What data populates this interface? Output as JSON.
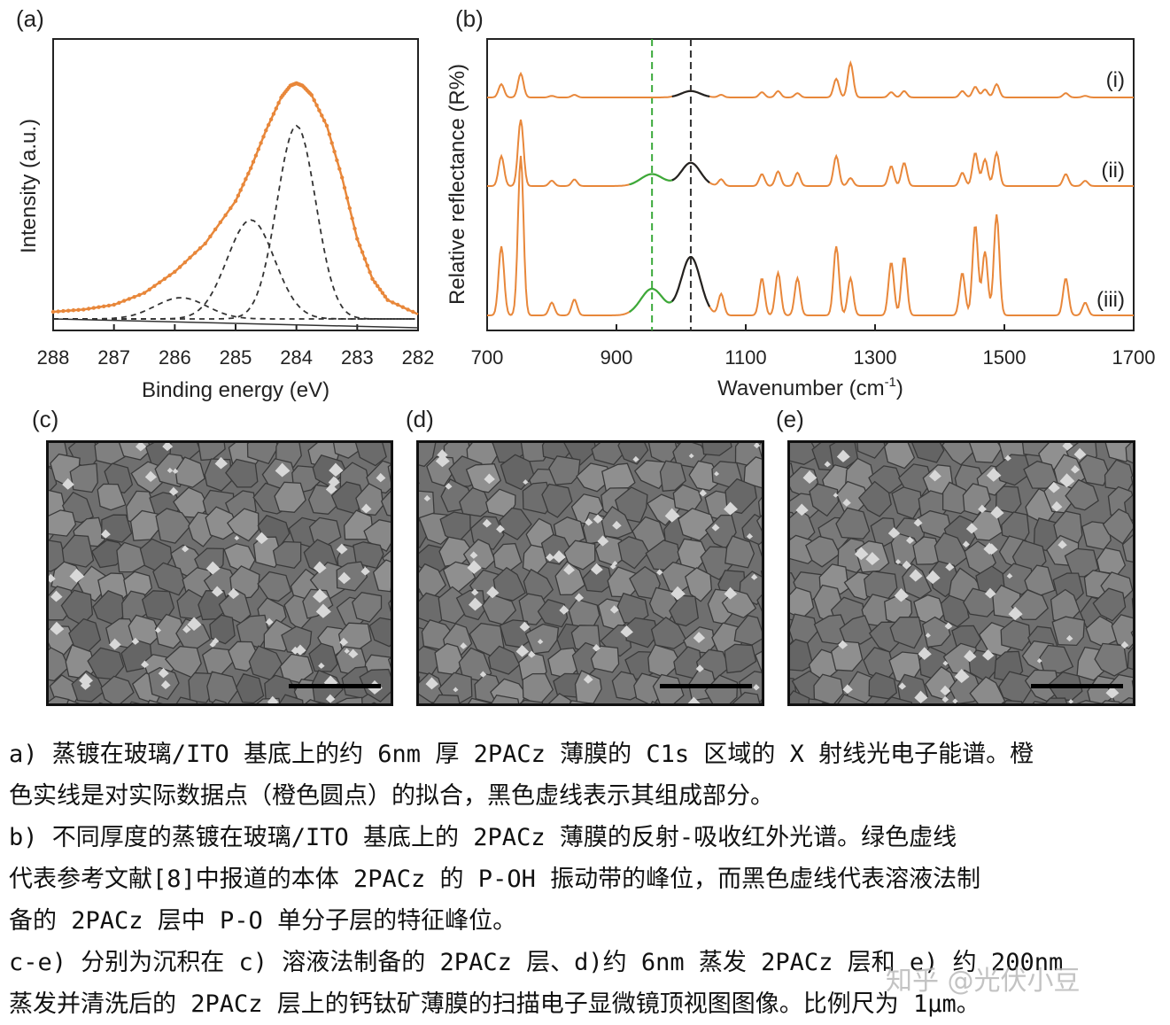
{
  "panels": {
    "a_label": "(a)",
    "b_label": "(b)",
    "c_label": "(c)",
    "d_label": "(d)",
    "e_label": "(e)"
  },
  "chart_data": [
    {
      "type": "line",
      "panel": "a",
      "xlabel": "Binding energy (eV)",
      "ylabel": "Intensity (a.u.)",
      "xlim": [
        288,
        282
      ],
      "x_reversed": true,
      "x_ticks": [
        "288",
        "287",
        "286",
        "285",
        "284",
        "283",
        "282"
      ],
      "y_ticks": [],
      "series": [
        {
          "kind": "data-points",
          "color": "#E8873A",
          "x": [
            288,
            287.5,
            287,
            286.5,
            286,
            285.5,
            285,
            284.75,
            284.5,
            284.25,
            284.1,
            284.0,
            283.9,
            283.75,
            283.5,
            283.25,
            283,
            282.75,
            282.5,
            282
          ],
          "y": [
            0.03,
            0.04,
            0.06,
            0.11,
            0.2,
            0.32,
            0.5,
            0.64,
            0.8,
            0.94,
            0.99,
            1.0,
            0.99,
            0.95,
            0.82,
            0.6,
            0.34,
            0.17,
            0.08,
            0.02
          ]
        },
        {
          "kind": "fit",
          "color": "#E8873A",
          "x": [
            288,
            287.5,
            287,
            286.5,
            286,
            285.5,
            285,
            284.75,
            284.5,
            284.25,
            284.1,
            284.0,
            283.9,
            283.75,
            283.5,
            283.25,
            283,
            282.75,
            282.5,
            282
          ],
          "y": [
            0.03,
            0.04,
            0.06,
            0.11,
            0.2,
            0.32,
            0.5,
            0.64,
            0.8,
            0.94,
            0.99,
            1.0,
            0.99,
            0.95,
            0.82,
            0.6,
            0.34,
            0.17,
            0.08,
            0.02
          ]
        },
        {
          "kind": "component",
          "color": "#333333",
          "dashed": true,
          "center": 284.0,
          "height": 0.82,
          "width": 0.45
        },
        {
          "kind": "component",
          "color": "#333333",
          "dashed": true,
          "center": 284.75,
          "height": 0.42,
          "width": 0.55
        },
        {
          "kind": "component",
          "color": "#333333",
          "dashed": true,
          "center": 285.9,
          "height": 0.09,
          "width": 0.6
        },
        {
          "kind": "background",
          "color": "#333333",
          "dashed": false
        }
      ]
    },
    {
      "type": "line",
      "panel": "b",
      "xlabel": "Wavenumber (cm",
      "xlabel_sup": "-1",
      "xlabel_end": ")",
      "ylabel": "Relative reflectance (R%)",
      "xlim": [
        700,
        1700
      ],
      "x_ticks": [
        "700",
        "900",
        "1100",
        "1300",
        "1500",
        "1700"
      ],
      "ref_lines": [
        {
          "x": 955,
          "color": "#3BAA3B",
          "dashed": true
        },
        {
          "x": 1015,
          "color": "#333333",
          "dashed": true
        }
      ],
      "series": [
        {
          "name": "(i)",
          "color": "#E8873A"
        },
        {
          "name": "(ii)",
          "color": "#E8873A"
        },
        {
          "name": "(iii)",
          "color": "#E8873A"
        }
      ],
      "peaks": [
        {
          "x": 722,
          "a": [
            0.25,
            0.45,
            0.65
          ]
        },
        {
          "x": 752,
          "a": [
            0.45,
            1.0,
            1.5
          ]
        },
        {
          "x": 800,
          "a": [
            0.03,
            0.08,
            0.12
          ]
        },
        {
          "x": 835,
          "a": [
            0.05,
            0.1,
            0.15
          ]
        },
        {
          "x": 1062,
          "a": [
            0.05,
            0.1,
            0.2
          ]
        },
        {
          "x": 1125,
          "a": [
            0.1,
            0.18,
            0.35
          ]
        },
        {
          "x": 1150,
          "a": [
            0.12,
            0.22,
            0.4
          ]
        },
        {
          "x": 1180,
          "a": [
            0.08,
            0.2,
            0.35
          ]
        },
        {
          "x": 1240,
          "a": [
            0.35,
            0.45,
            0.65
          ]
        },
        {
          "x": 1262,
          "a": [
            0.65,
            0.12,
            0.35
          ]
        },
        {
          "x": 1325,
          "a": [
            0.1,
            0.3,
            0.5
          ]
        },
        {
          "x": 1345,
          "a": [
            0.12,
            0.35,
            0.55
          ]
        },
        {
          "x": 1435,
          "a": [
            0.12,
            0.2,
            0.4
          ]
        },
        {
          "x": 1455,
          "a": [
            0.2,
            0.5,
            0.85
          ]
        },
        {
          "x": 1470,
          "a": [
            0.15,
            0.4,
            0.6
          ]
        },
        {
          "x": 1488,
          "a": [
            0.25,
            0.5,
            0.95
          ]
        },
        {
          "x": 1595,
          "a": [
            0.08,
            0.18,
            0.35
          ]
        },
        {
          "x": 1625,
          "a": [
            0.03,
            0.08,
            0.12
          ]
        }
      ],
      "green_band": {
        "x_range": [
          920,
          990
        ],
        "a": [
          0.0,
          0.18,
          0.25
        ]
      },
      "black_band": {
        "x_range": [
          985,
          1045
        ],
        "a": [
          0.12,
          0.35,
          0.55
        ]
      }
    }
  ],
  "caption": {
    "a_line1": "a) 蒸镀在玻璃/ITO 基底上的约 6nm 厚 2PACz 薄膜的 C1s 区域的 X 射线光电子能谱。橙",
    "a_line2": "色实线是对实际数据点（橙色圆点）的拟合，黑色虚线表示其组成部分。",
    "b_line1": "b) 不同厚度的蒸镀在玻璃/ITO 基底上的 2PACz 薄膜的反射-吸收红外光谱。绿色虚线",
    "b_line2": "代表参考文献[8]中报道的本体 2PACz 的 P-OH 振动带的峰位，而黑色虚线代表溶液法制",
    "b_line3": "备的 2PACz 层中 P-O 单分子层的特征峰位。",
    "ce_line1": "c-e) 分别为沉积在 c) 溶液法制备的 2PACz 层、d)约 6nm 蒸发 2PACz 层和 e) 约 200nm",
    "ce_line2": "蒸发并清洗后的 2PACz 层上的钙钛矿薄膜的扫描电子显微镜顶视图图像。比例尺为 1μm。"
  },
  "watermark": "知乎 @光伏小豆"
}
